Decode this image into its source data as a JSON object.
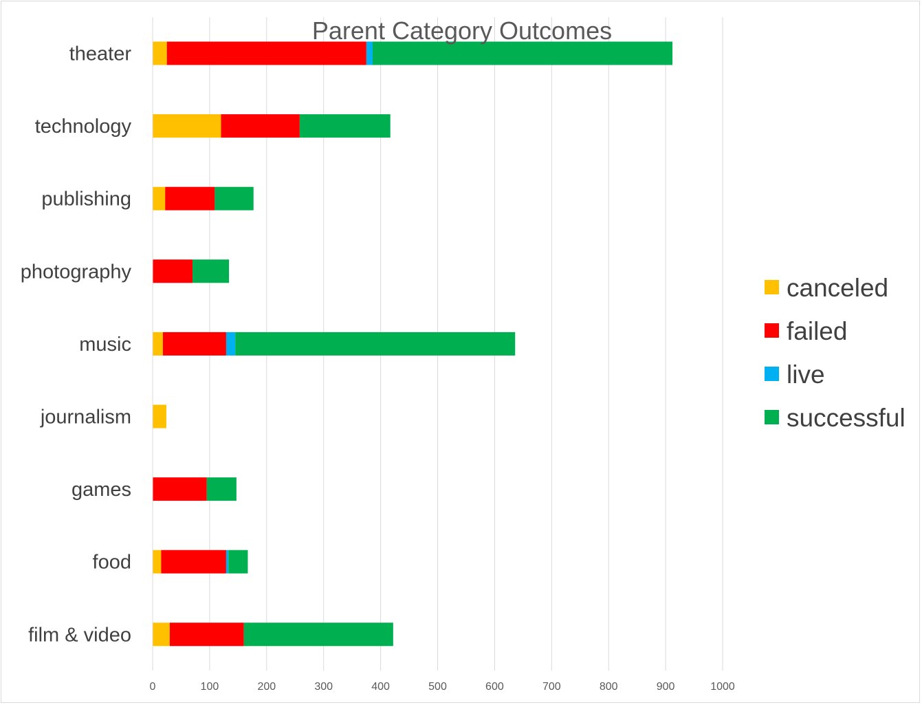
{
  "chart_data": {
    "type": "bar",
    "orientation": "horizontal",
    "stacked": true,
    "title": "Parent Category Outcomes",
    "categories": [
      "theater",
      "technology",
      "publishing",
      "photography",
      "music",
      "journalism",
      "games",
      "food",
      "film & video"
    ],
    "series": [
      {
        "name": "canceled",
        "color": "#FFC000",
        "values": [
          25,
          120,
          22,
          0,
          18,
          24,
          0,
          15,
          30
        ]
      },
      {
        "name": "failed",
        "color": "#FF0000",
        "values": [
          350,
          138,
          87,
          70,
          111,
          0,
          95,
          114,
          130
        ]
      },
      {
        "name": "live",
        "color": "#00B0F0",
        "values": [
          11,
          0,
          0,
          0,
          16,
          0,
          0,
          4,
          0
        ]
      },
      {
        "name": "successful",
        "color": "#00B050",
        "values": [
          526,
          159,
          68,
          64,
          491,
          0,
          52,
          34,
          262
        ]
      }
    ],
    "xlim": [
      0,
      1000
    ],
    "x_ticks": [
      0,
      100,
      200,
      300,
      400,
      500,
      600,
      700,
      800,
      900,
      1000
    ],
    "grid": true,
    "legend_position": "right"
  }
}
